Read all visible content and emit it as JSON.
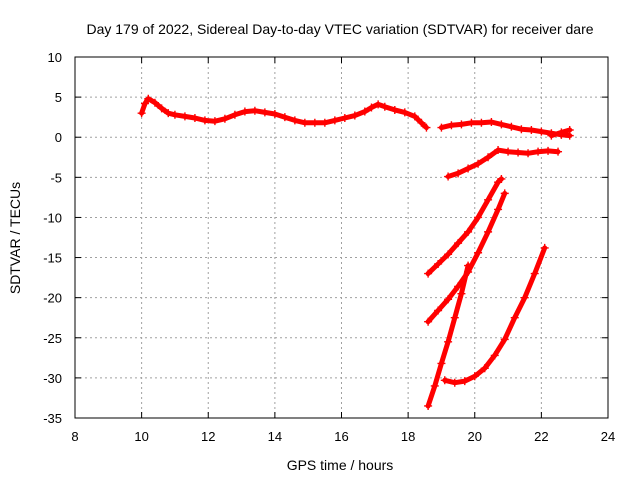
{
  "chart_data": {
    "type": "scatter",
    "title": "Day 179 of 2022, Sidereal Day-to-day VTEC variation (SDTVAR) for receiver dare",
    "xlabel": "GPS time / hours",
    "ylabel": "SDTVAR / TECUs",
    "xlim": [
      8,
      24
    ],
    "ylim": [
      -35,
      10
    ],
    "xticks": [
      8,
      10,
      12,
      14,
      16,
      18,
      20,
      22,
      24
    ],
    "yticks": [
      10,
      5,
      0,
      -5,
      -10,
      -15,
      -20,
      -25,
      -30,
      -35
    ],
    "grid": true,
    "marker": "+",
    "color": "#ff0000",
    "series": [
      {
        "points": [
          [
            10.0,
            3.0
          ],
          [
            10.1,
            4.2
          ],
          [
            10.2,
            4.8
          ],
          [
            10.4,
            4.3
          ],
          [
            10.6,
            3.6
          ],
          [
            10.8,
            3.0
          ],
          [
            11.0,
            2.8
          ],
          [
            11.3,
            2.6
          ],
          [
            11.6,
            2.4
          ],
          [
            11.9,
            2.1
          ],
          [
            12.2,
            2.0
          ],
          [
            12.5,
            2.3
          ],
          [
            12.8,
            2.8
          ],
          [
            13.1,
            3.2
          ],
          [
            13.4,
            3.3
          ],
          [
            13.7,
            3.1
          ],
          [
            14.0,
            2.9
          ],
          [
            14.3,
            2.5
          ],
          [
            14.6,
            2.1
          ],
          [
            14.9,
            1.8
          ],
          [
            15.2,
            1.8
          ],
          [
            15.5,
            1.8
          ],
          [
            15.8,
            2.1
          ],
          [
            16.1,
            2.4
          ],
          [
            16.4,
            2.7
          ],
          [
            16.7,
            3.2
          ],
          [
            16.9,
            3.7
          ],
          [
            17.1,
            4.1
          ],
          [
            17.3,
            3.8
          ],
          [
            17.6,
            3.4
          ],
          [
            17.9,
            3.1
          ],
          [
            18.2,
            2.6
          ],
          [
            18.4,
            1.8
          ],
          [
            18.55,
            1.2
          ]
        ]
      },
      {
        "points": [
          [
            19.0,
            1.2
          ],
          [
            19.3,
            1.5
          ],
          [
            19.6,
            1.6
          ],
          [
            19.9,
            1.8
          ],
          [
            20.2,
            1.8
          ],
          [
            20.5,
            1.9
          ],
          [
            20.8,
            1.6
          ],
          [
            21.1,
            1.3
          ],
          [
            21.4,
            1.0
          ],
          [
            21.7,
            0.9
          ],
          [
            22.0,
            0.7
          ],
          [
            22.3,
            0.5
          ],
          [
            22.6,
            0.3
          ],
          [
            22.85,
            0.2
          ]
        ]
      },
      {
        "points": [
          [
            22.3,
            0.2
          ],
          [
            22.6,
            0.6
          ],
          [
            22.85,
            0.9
          ]
        ]
      },
      {
        "points": [
          [
            19.2,
            -4.9
          ],
          [
            19.5,
            -4.5
          ],
          [
            19.8,
            -3.9
          ],
          [
            20.1,
            -3.3
          ],
          [
            20.4,
            -2.5
          ],
          [
            20.7,
            -1.6
          ],
          [
            21.0,
            -1.8
          ],
          [
            21.3,
            -1.9
          ],
          [
            21.6,
            -2.0
          ],
          [
            21.9,
            -1.8
          ],
          [
            22.2,
            -1.7
          ],
          [
            22.5,
            -1.8
          ]
        ]
      },
      {
        "points": [
          [
            18.6,
            -17.0
          ],
          [
            18.9,
            -15.8
          ],
          [
            19.2,
            -14.6
          ],
          [
            19.5,
            -13.2
          ],
          [
            19.8,
            -11.8
          ],
          [
            20.1,
            -10.0
          ],
          [
            20.4,
            -7.8
          ],
          [
            20.7,
            -5.6
          ],
          [
            20.8,
            -5.2
          ]
        ]
      },
      {
        "points": [
          [
            18.6,
            -23.0
          ],
          [
            18.9,
            -21.6
          ],
          [
            19.2,
            -20.2
          ],
          [
            19.5,
            -18.6
          ],
          [
            19.8,
            -16.8
          ],
          [
            20.1,
            -14.4
          ],
          [
            20.4,
            -11.8
          ],
          [
            20.7,
            -9.0
          ],
          [
            20.9,
            -7.0
          ]
        ]
      },
      {
        "points": [
          [
            18.6,
            -33.5
          ],
          [
            18.8,
            -31.0
          ],
          [
            19.0,
            -28.2
          ],
          [
            19.2,
            -25.5
          ],
          [
            19.4,
            -22.5
          ],
          [
            19.6,
            -19.5
          ],
          [
            19.8,
            -16.0
          ]
        ]
      },
      {
        "points": [
          [
            19.1,
            -30.3
          ],
          [
            19.4,
            -30.6
          ],
          [
            19.7,
            -30.4
          ],
          [
            20.0,
            -29.8
          ],
          [
            20.3,
            -28.8
          ],
          [
            20.6,
            -27.2
          ],
          [
            20.9,
            -25.2
          ],
          [
            21.2,
            -22.5
          ],
          [
            21.5,
            -20.0
          ],
          [
            21.8,
            -17.0
          ],
          [
            22.1,
            -13.8
          ]
        ]
      }
    ]
  }
}
